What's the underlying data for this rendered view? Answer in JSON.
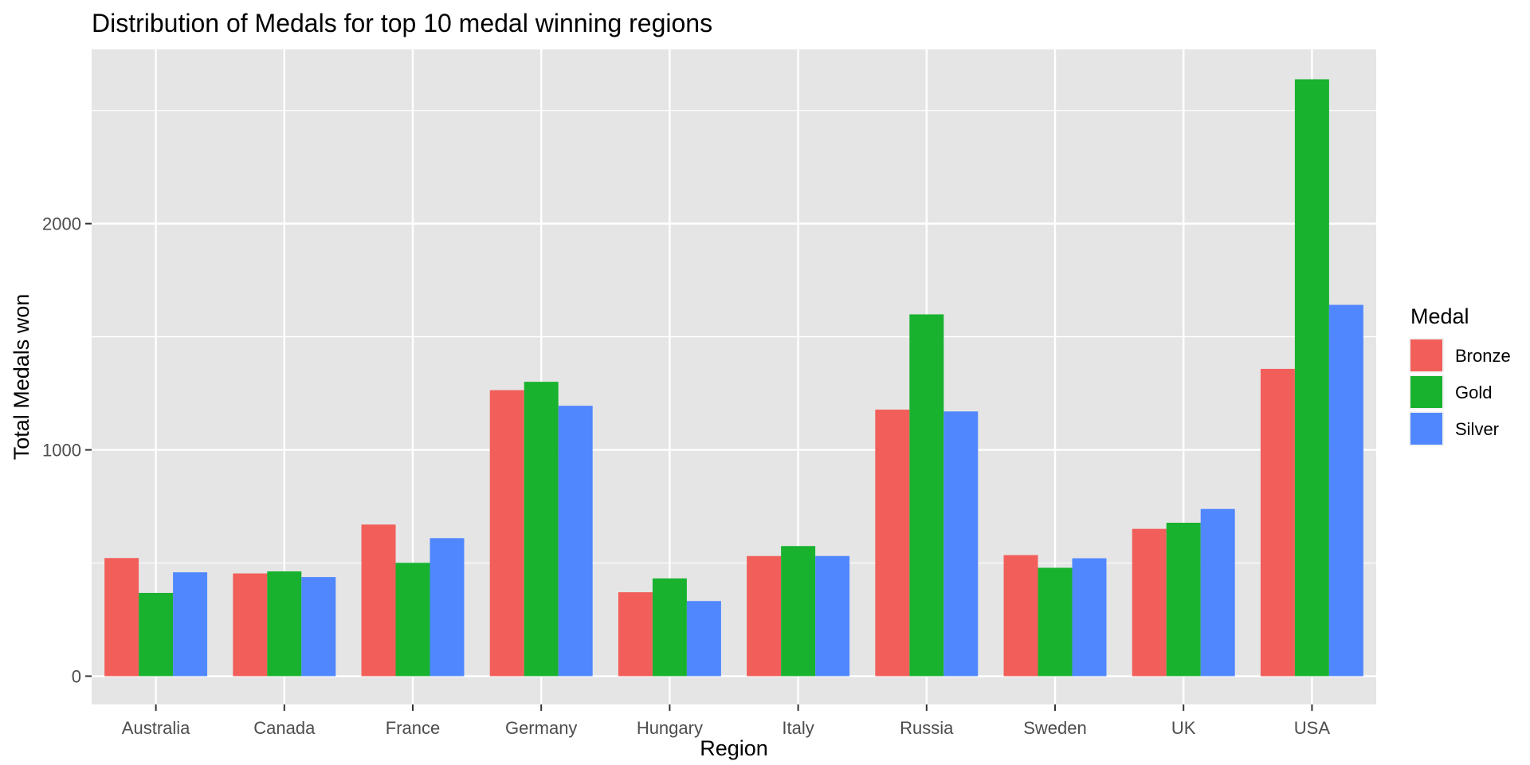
{
  "chart_data": {
    "type": "bar",
    "title": "Distribution of Medals for top 10 medal winning regions",
    "xlabel": "Region",
    "ylabel": "Total Medals won",
    "categories": [
      "Australia",
      "Canada",
      "France",
      "Germany",
      "Hungary",
      "Italy",
      "Russia",
      "Sweden",
      "UK",
      "USA"
    ],
    "series": [
      {
        "name": "Bronze",
        "color": "#F25E5A",
        "values": [
          522,
          454,
          670,
          1264,
          371,
          531,
          1178,
          535,
          651,
          1358
        ]
      },
      {
        "name": "Gold",
        "color": "#18B22F",
        "values": [
          368,
          463,
          501,
          1301,
          432,
          575,
          1599,
          479,
          678,
          2638
        ]
      },
      {
        "name": "Silver",
        "color": "#5087FF",
        "values": [
          459,
          438,
          610,
          1195,
          332,
          531,
          1170,
          521,
          739,
          1641
        ]
      }
    ],
    "yticks": [
      0,
      1000,
      2000
    ],
    "ylim": [
      -125,
      2770
    ],
    "grid": true,
    "legend": {
      "title": "Medal",
      "position": "right"
    },
    "panel_background": "#E5E5E5"
  }
}
